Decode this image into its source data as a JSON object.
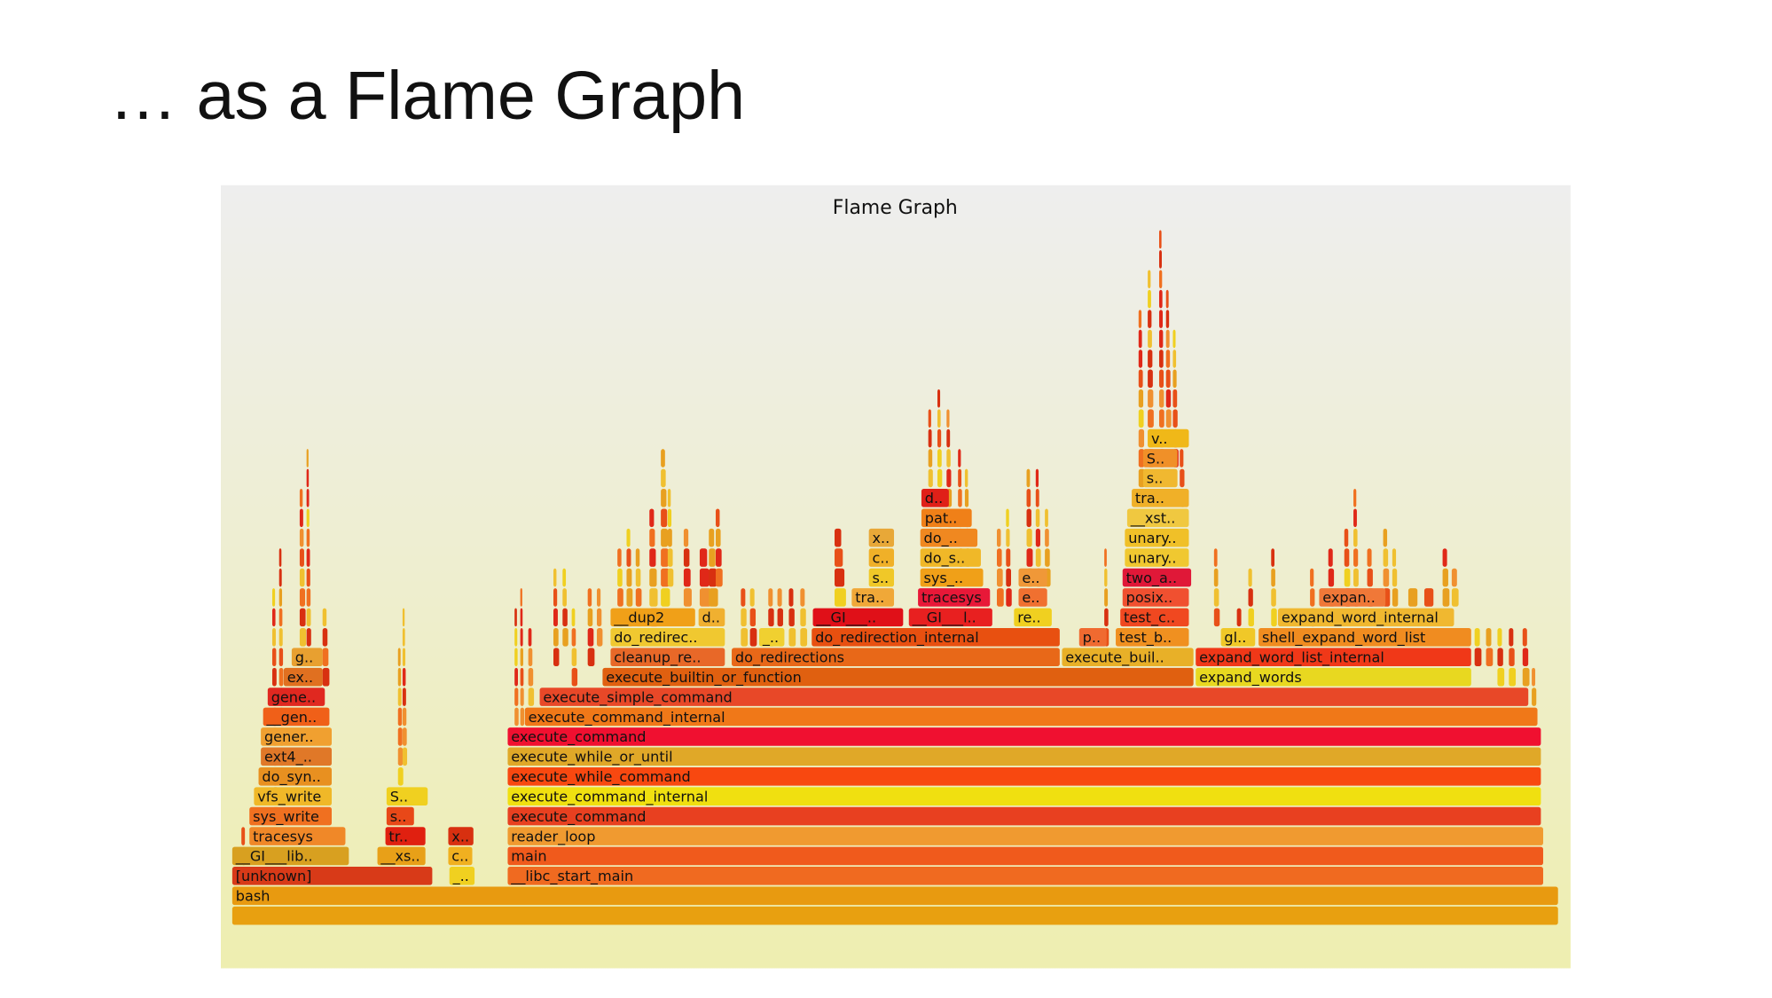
{
  "slide": {
    "title": "… as a Flame Graph"
  },
  "flame_graph": {
    "title": "Flame Graph",
    "frames": [
      {
        "label": "bash"
      },
      {
        "label": "[unknown]"
      },
      {
        "label": "__libc_start_main"
      },
      {
        "label": "_.."
      },
      {
        "label": "__GI___lib.."
      },
      {
        "label": "__xs.."
      },
      {
        "label": "c.."
      },
      {
        "label": "main"
      },
      {
        "label": "tracesys"
      },
      {
        "label": "tr.."
      },
      {
        "label": "x.."
      },
      {
        "label": "reader_loop"
      },
      {
        "label": "sys_write"
      },
      {
        "label": "s.."
      },
      {
        "label": "execute_command"
      },
      {
        "label": "vfs_write"
      },
      {
        "label": "S.."
      },
      {
        "label": "execute_command_internal"
      },
      {
        "label": "do_syn.."
      },
      {
        "label": "execute_while_command"
      },
      {
        "label": "ext4_.."
      },
      {
        "label": "execute_while_or_until"
      },
      {
        "label": "gener.."
      },
      {
        "label": "execute_command"
      },
      {
        "label": "__gen.."
      },
      {
        "label": "execute_command_internal"
      },
      {
        "label": "gene.."
      },
      {
        "label": "execute_simple_command"
      },
      {
        "label": "ex.."
      },
      {
        "label": "execute_builtin_or_function"
      },
      {
        "label": "expand_words"
      },
      {
        "label": "g.."
      },
      {
        "label": "cleanup_re.."
      },
      {
        "label": "do_redirections"
      },
      {
        "label": "execute_buil.."
      },
      {
        "label": "expand_word_list_internal"
      },
      {
        "label": "do_redirec.."
      },
      {
        "label": "_.."
      },
      {
        "label": "do_redirection_internal"
      },
      {
        "label": "p.."
      },
      {
        "label": "test_b.."
      },
      {
        "label": "gl.."
      },
      {
        "label": "shell_expand_word_list"
      },
      {
        "label": "__dup2"
      },
      {
        "label": "d.."
      },
      {
        "label": "__GI___.."
      },
      {
        "label": "__GI___l.."
      },
      {
        "label": "re.."
      },
      {
        "label": "test_c.."
      },
      {
        "label": "expand_word_internal"
      },
      {
        "label": "tra.."
      },
      {
        "label": "tracesys"
      },
      {
        "label": "e.."
      },
      {
        "label": "posix.."
      },
      {
        "label": "expan.."
      },
      {
        "label": "s.."
      },
      {
        "label": "sys_.."
      },
      {
        "label": "e.."
      },
      {
        "label": "two_a.."
      },
      {
        "label": "c.."
      },
      {
        "label": "do_s.."
      },
      {
        "label": "unary.."
      },
      {
        "label": "x.."
      },
      {
        "label": "do_.."
      },
      {
        "label": "unary.."
      },
      {
        "label": "pat.."
      },
      {
        "label": "__xst.."
      },
      {
        "label": "d.."
      },
      {
        "label": "tra.."
      },
      {
        "label": "s.."
      },
      {
        "label": "S.."
      },
      {
        "label": "v.."
      }
    ]
  }
}
